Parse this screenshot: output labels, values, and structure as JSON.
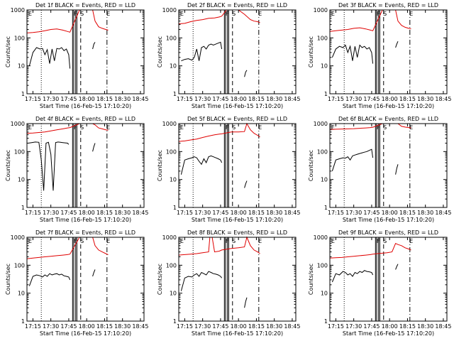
{
  "chart_data": [
    {
      "type": "line",
      "title": "Det 1f BLACK = Events, RED = LLD",
      "xlabel": "Start Time (16-Feb-15 17:10:20)",
      "ylabel": "Counts/sec",
      "ylim": [
        1,
        1000
      ],
      "yscale": "log",
      "x_ticks": [
        "17:15",
        "17:30",
        "17:45",
        "18:00",
        "18:15",
        "18:30",
        "18:45"
      ],
      "y_ticks": [
        "1",
        "10",
        "100",
        "1000"
      ],
      "flags": [
        "E",
        "F",
        "S",
        "E"
      ],
      "series": [
        {
          "color": "#000000",
          "x": [
            2,
            5,
            8,
            11,
            13,
            15,
            17,
            19,
            21,
            23,
            25,
            27,
            29,
            31,
            33,
            35,
            36
          ],
          "y": [
            10,
            30,
            45,
            40,
            42,
            25,
            38,
            12,
            40,
            15,
            42,
            40,
            45,
            35,
            40,
            25,
            8
          ]
        },
        {
          "color": "#e00000",
          "x": [
            0,
            5,
            10,
            15,
            20,
            25,
            30,
            34,
            36,
            44,
            48,
            52,
            55,
            57,
            60,
            63,
            66,
            68
          ],
          "y": [
            150,
            155,
            165,
            180,
            200,
            210,
            190,
            170,
            160,
            1000,
            1000,
            1000,
            1000,
            400,
            250,
            220,
            200,
            190
          ]
        }
      ],
      "overlay": [
        {
          "color": "#000000",
          "x": [
            55,
            56,
            57
          ],
          "y": [
            40,
            60,
            70
          ]
        }
      ]
    },
    {
      "type": "line",
      "title": "Det 2f BLACK = Events, RED = LLD",
      "xlabel": "Start Time (16-Feb-15 17:10:20)",
      "ylabel": "Counts/sec",
      "ylim": [
        1,
        1000
      ],
      "yscale": "log",
      "x_ticks": [
        "17:15",
        "17:30",
        "17:45",
        "18:00",
        "18:15",
        "18:30",
        "18:45"
      ],
      "y_ticks": [
        "1",
        "10",
        "100",
        "1000"
      ],
      "flags": [
        "E",
        "F",
        "S",
        "E"
      ],
      "series": [
        {
          "color": "#000000",
          "x": [
            2,
            5,
            8,
            11,
            13,
            15,
            17,
            19,
            21,
            23,
            25,
            27,
            29,
            31,
            33,
            35,
            36
          ],
          "y": [
            15,
            17,
            18,
            16,
            20,
            40,
            15,
            45,
            50,
            40,
            55,
            60,
            55,
            60,
            65,
            70,
            40
          ]
        },
        {
          "color": "#e00000",
          "x": [
            0,
            5,
            10,
            15,
            20,
            25,
            30,
            34,
            36,
            40,
            45,
            50,
            55,
            60,
            63,
            66,
            68
          ],
          "y": [
            320,
            330,
            380,
            420,
            450,
            500,
            520,
            560,
            600,
            1000,
            1000,
            1000,
            700,
            450,
            400,
            380,
            350
          ]
        }
      ],
      "overlay": [
        {
          "color": "#000000",
          "x": [
            55,
            56,
            57
          ],
          "y": [
            4,
            6,
            7
          ]
        }
      ]
    },
    {
      "type": "line",
      "title": "Det 3f BLACK = Events, RED = LLD",
      "xlabel": "Start Time (16-Feb-15 17:10:20)",
      "ylabel": "Counts/sec",
      "ylim": [
        1,
        1000
      ],
      "yscale": "log",
      "x_ticks": [
        "17:15",
        "17:30",
        "17:45",
        "18:00",
        "18:15",
        "18:30",
        "18:45"
      ],
      "y_ticks": [
        "1",
        "10",
        "100",
        "1000"
      ],
      "flags": [
        "E",
        "F",
        "S",
        "E"
      ],
      "series": [
        {
          "color": "#000000",
          "x": [
            2,
            5,
            8,
            11,
            13,
            15,
            17,
            19,
            21,
            23,
            25,
            27,
            29,
            31,
            33,
            35,
            36
          ],
          "y": [
            20,
            40,
            50,
            45,
            55,
            30,
            50,
            15,
            50,
            20,
            55,
            45,
            50,
            40,
            45,
            30,
            12
          ]
        },
        {
          "color": "#e00000",
          "x": [
            0,
            5,
            10,
            15,
            20,
            25,
            30,
            34,
            36,
            44,
            48,
            52,
            55,
            57,
            60,
            63,
            66,
            68
          ],
          "y": [
            170,
            180,
            190,
            200,
            220,
            230,
            210,
            190,
            180,
            1000,
            1000,
            1000,
            1000,
            400,
            280,
            240,
            220,
            210
          ]
        }
      ],
      "overlay": [
        {
          "color": "#000000",
          "x": [
            55,
            56,
            57
          ],
          "y": [
            45,
            60,
            75
          ]
        }
      ]
    },
    {
      "type": "line",
      "title": "Det 4f BLACK = Events, RED = LLD",
      "xlabel": "Start Time (16-Feb-15 17:10:20)",
      "ylabel": "Counts/sec",
      "ylim": [
        1,
        1000
      ],
      "yscale": "log",
      "x_ticks": [
        "17:15",
        "17:30",
        "17:45",
        "18:00",
        "18:15",
        "18:30",
        "18:45"
      ],
      "y_ticks": [
        "1",
        "10",
        "100",
        "1000"
      ],
      "flags": [
        "E",
        "F",
        "S",
        "E"
      ],
      "series": [
        {
          "color": "#000000",
          "x": [
            1,
            4,
            7,
            10,
            12,
            14,
            16,
            18,
            20,
            22,
            24,
            26,
            28,
            30,
            32,
            34,
            35
          ],
          "y": [
            200,
            210,
            220,
            215,
            50,
            4,
            200,
            215,
            80,
            4,
            210,
            220,
            215,
            210,
            205,
            200,
            180
          ]
        },
        {
          "color": "#e00000",
          "x": [
            0,
            5,
            10,
            15,
            20,
            25,
            30,
            34,
            36,
            44,
            50,
            55,
            57,
            60,
            63,
            66,
            68
          ],
          "y": [
            450,
            460,
            480,
            500,
            550,
            600,
            650,
            700,
            720,
            1000,
            1000,
            1000,
            900,
            700,
            650,
            600,
            580
          ]
        }
      ],
      "overlay": [
        {
          "color": "#000000",
          "x": [
            55,
            56,
            57
          ],
          "y": [
            100,
            150,
            200
          ]
        }
      ]
    },
    {
      "type": "line",
      "title": "Det 5f BLACK = Events, RED = LLD",
      "xlabel": "Start Time (16-Feb-15 17:10:20)",
      "ylabel": "Counts/sec",
      "ylim": [
        1,
        1000
      ],
      "yscale": "log",
      "x_ticks": [
        "17:15",
        "17:30",
        "17:45",
        "18:00",
        "18:15",
        "18:30",
        "18:45"
      ],
      "y_ticks": [
        "1",
        "10",
        "100",
        "1000"
      ],
      "flags": [
        "E",
        "F",
        "S",
        "E"
      ],
      "series": [
        {
          "color": "#000000",
          "x": [
            2,
            5,
            8,
            11,
            13,
            15,
            17,
            19,
            21,
            23,
            25,
            27,
            29,
            31,
            33,
            35,
            36
          ],
          "y": [
            15,
            50,
            55,
            60,
            65,
            60,
            45,
            35,
            55,
            40,
            65,
            70,
            65,
            60,
            55,
            50,
            40
          ]
        },
        {
          "color": "#e00000",
          "x": [
            0,
            5,
            10,
            15,
            20,
            25,
            30,
            34,
            36,
            44,
            50,
            55,
            57,
            60,
            63,
            66,
            68
          ],
          "y": [
            230,
            240,
            260,
            280,
            320,
            360,
            400,
            420,
            430,
            500,
            500,
            520,
            1000,
            600,
            450,
            380,
            330
          ]
        }
      ],
      "overlay": [
        {
          "color": "#000000",
          "x": [
            55,
            56,
            57
          ],
          "y": [
            5,
            7,
            9
          ]
        }
      ]
    },
    {
      "type": "line",
      "title": "Det 6f BLACK = Events, RED = LLD",
      "xlabel": "Start Time (16-Feb-15 17:10:20)",
      "ylabel": "Counts/sec",
      "ylim": [
        1,
        1000
      ],
      "yscale": "log",
      "x_ticks": [
        "17:15",
        "17:30",
        "17:45",
        "18:00",
        "18:15",
        "18:30",
        "18:45"
      ],
      "y_ticks": [
        "1",
        "10",
        "100",
        "1000"
      ],
      "flags": [
        "E",
        "F",
        "S",
        "E"
      ],
      "series": [
        {
          "color": "#000000",
          "x": [
            2,
            5,
            8,
            11,
            13,
            15,
            17,
            19,
            21,
            23,
            25,
            27,
            29,
            31,
            33,
            35,
            36
          ],
          "y": [
            20,
            50,
            55,
            60,
            58,
            65,
            50,
            70,
            75,
            80,
            85,
            90,
            95,
            100,
            110,
            120,
            60
          ]
        },
        {
          "color": "#e00000",
          "x": [
            0,
            5,
            10,
            15,
            20,
            25,
            30,
            34,
            36,
            44,
            50,
            55,
            57,
            60,
            63,
            66,
            68
          ],
          "y": [
            620,
            630,
            640,
            650,
            660,
            680,
            700,
            720,
            740,
            1000,
            1000,
            1000,
            1000,
            800,
            750,
            720,
            700
          ]
        }
      ],
      "overlay": [
        {
          "color": "#000000",
          "x": [
            55,
            56,
            57
          ],
          "y": [
            15,
            25,
            35
          ]
        }
      ]
    },
    {
      "type": "line",
      "title": "Det 7f BLACK = Events, RED = LLD",
      "xlabel": "Start Time (16-Feb-15 17:10:20)",
      "ylabel": "Counts/sec",
      "ylim": [
        1,
        1000
      ],
      "yscale": "log",
      "x_ticks": [
        "17:15",
        "17:30",
        "17:45",
        "18:00",
        "18:15",
        "18:30",
        "18:45"
      ],
      "y_ticks": [
        "1",
        "10",
        "100",
        "1000"
      ],
      "flags": [
        "E",
        "F",
        "S",
        "E"
      ],
      "series": [
        {
          "color": "#000000",
          "x": [
            2,
            5,
            8,
            11,
            13,
            15,
            17,
            19,
            21,
            23,
            25,
            27,
            29,
            31,
            33,
            35,
            36
          ],
          "y": [
            18,
            40,
            45,
            42,
            38,
            45,
            40,
            50,
            45,
            48,
            50,
            45,
            48,
            42,
            40,
            38,
            30
          ]
        },
        {
          "color": "#e00000",
          "x": [
            0,
            5,
            10,
            15,
            20,
            25,
            30,
            34,
            36,
            44,
            48,
            52,
            55,
            57,
            60,
            63,
            66,
            68
          ],
          "y": [
            170,
            180,
            190,
            200,
            210,
            220,
            230,
            240,
            250,
            1000,
            1000,
            1000,
            1000,
            500,
            350,
            300,
            260,
            240
          ]
        }
      ],
      "overlay": [
        {
          "color": "#000000",
          "x": [
            55,
            56,
            57
          ],
          "y": [
            40,
            55,
            70
          ]
        }
      ]
    },
    {
      "type": "line",
      "title": "Det 8f BLACK = Events, RED = LLD",
      "xlabel": "Start Time (16-Feb-15 17:10:20)",
      "ylabel": "Counts/sec",
      "ylim": [
        1,
        1000
      ],
      "yscale": "log",
      "x_ticks": [
        "17:15",
        "17:30",
        "17:45",
        "18:00",
        "18:15",
        "18:30",
        "18:45"
      ],
      "y_ticks": [
        "1",
        "10",
        "100",
        "1000"
      ],
      "flags": [
        "E",
        "F",
        "S",
        "E"
      ],
      "series": [
        {
          "color": "#000000",
          "x": [
            2,
            5,
            8,
            11,
            13,
            15,
            17,
            19,
            21,
            23,
            25,
            27,
            29,
            31,
            33,
            35,
            36
          ],
          "y": [
            12,
            35,
            40,
            38,
            45,
            50,
            40,
            55,
            50,
            45,
            60,
            55,
            50,
            48,
            45,
            40,
            35
          ]
        },
        {
          "color": "#e00000",
          "x": [
            0,
            5,
            10,
            15,
            20,
            25,
            26,
            28,
            30,
            34,
            36,
            44,
            50,
            55,
            57,
            60,
            63,
            66,
            68
          ],
          "y": [
            230,
            240,
            250,
            260,
            280,
            300,
            1000,
            1000,
            300,
            320,
            350,
            400,
            420,
            450,
            1000,
            500,
            350,
            300,
            260
          ]
        }
      ],
      "overlay": [
        {
          "color": "#000000",
          "x": [
            55,
            56,
            57
          ],
          "y": [
            3,
            5,
            7
          ]
        }
      ]
    },
    {
      "type": "line",
      "title": "Det 9f BLACK = Events, RED = LLD",
      "xlabel": "Start Time (16-Feb-15 17:10:20)",
      "ylabel": "Counts/sec",
      "ylim": [
        1,
        1000
      ],
      "yscale": "log",
      "x_ticks": [
        "17:15",
        "17:30",
        "17:45",
        "18:00",
        "18:15",
        "18:30",
        "18:45"
      ],
      "y_ticks": [
        "1",
        "10",
        "100",
        "1000"
      ],
      "flags": [
        "E",
        "F",
        "S",
        "E"
      ],
      "series": [
        {
          "color": "#000000",
          "x": [
            2,
            5,
            8,
            11,
            13,
            15,
            17,
            19,
            21,
            23,
            25,
            27,
            29,
            31,
            33,
            35,
            36
          ],
          "y": [
            25,
            50,
            45,
            60,
            55,
            45,
            50,
            40,
            55,
            50,
            60,
            55,
            65,
            60,
            58,
            55,
            45
          ]
        },
        {
          "color": "#e00000",
          "x": [
            0,
            5,
            10,
            15,
            20,
            25,
            30,
            34,
            36,
            40,
            44,
            48,
            52,
            55,
            57,
            60,
            63,
            66,
            68
          ],
          "y": [
            180,
            185,
            190,
            200,
            210,
            220,
            230,
            240,
            250,
            260,
            270,
            280,
            300,
            600,
            550,
            500,
            420,
            380,
            350
          ]
        }
      ],
      "overlay": [
        {
          "color": "#000000",
          "x": [
            55,
            56,
            57
          ],
          "y": [
            70,
            90,
            110
          ]
        }
      ]
    }
  ]
}
